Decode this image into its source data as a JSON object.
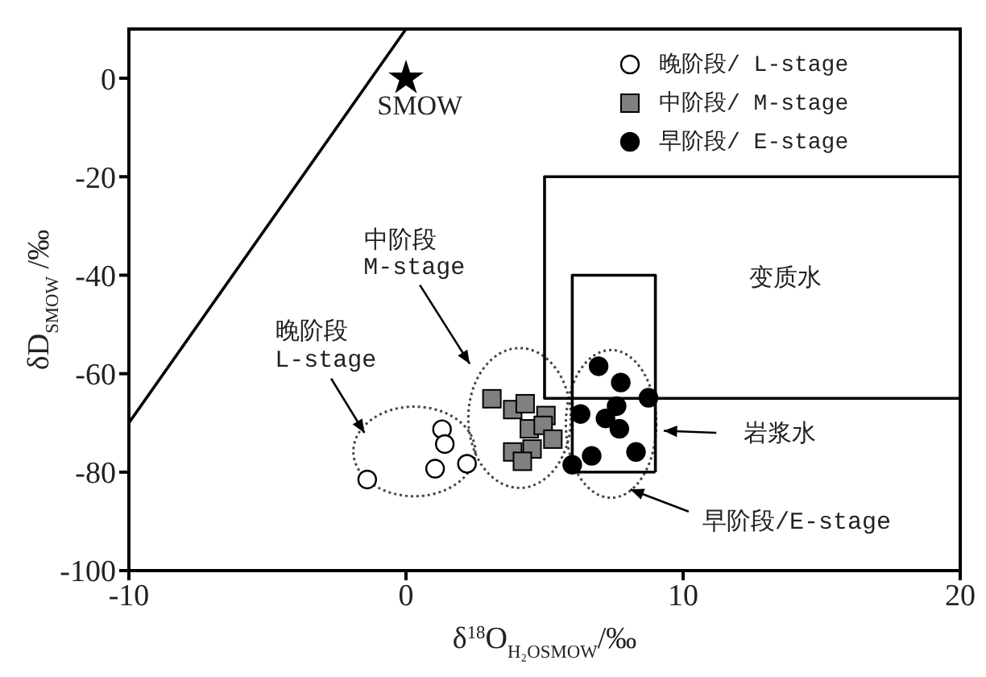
{
  "chart_data": {
    "type": "scatter",
    "xlabel": "δ$^{18}$O$_{H₂OSMOW}$/‰",
    "ylabel": "δD$_{SMOW}$ /‰",
    "xlim": [
      -10,
      20
    ],
    "xticks": [
      -10,
      0,
      10,
      20
    ],
    "ylim": [
      -100,
      10
    ],
    "yticks": [
      0,
      -20,
      -40,
      -60,
      -80,
      -100
    ],
    "grid": false,
    "legend": "top right",
    "series": [
      {
        "name": "晚阶段/ L-stage",
        "marker": "circle",
        "color": "#ffffff",
        "x": [
          -1.4,
          1.3,
          1.4,
          1.05,
          2.2
        ],
        "values": [
          -81.5,
          -71.3,
          -74.3,
          -79.3,
          -78.3
        ]
      },
      {
        "name": "中阶段/ M-stage",
        "marker": "square",
        "color": "#808080",
        "x": [
          3.1,
          3.85,
          4.3,
          4.45,
          5.05,
          4.95,
          5.3,
          4.55,
          3.85,
          4.2
        ],
        "values": [
          -65.1,
          -67.3,
          -66.1,
          -71.2,
          -68.5,
          -70.5,
          -73.3,
          -75.3,
          -75.9,
          -77.8
        ]
      },
      {
        "name": "早阶段/ E-stage",
        "marker": "circle",
        "color": "#000000",
        "x": [
          6.95,
          7.75,
          8.75,
          6.3,
          7.2,
          7.6,
          7.7,
          6.7,
          8.3,
          6.0
        ],
        "values": [
          -58.5,
          -61.8,
          -64.9,
          -68.2,
          -69.1,
          -66.6,
          -71.2,
          -76.7,
          -75.9,
          -78.5
        ]
      },
      {
        "marker": "star",
        "color": "#000000",
        "x": [
          0
        ],
        "values": [
          0
        ]
      },
      {
        "type": "line",
        "marker": "none",
        "color": "#000000",
        "x": [
          -10,
          0
        ],
        "values": [
          -70,
          10
        ]
      },
      {
        "type": "line",
        "marker": "none",
        "color": "#000000",
        "x": [
          20,
          5,
          5,
          20
        ],
        "values": [
          -20,
          -20,
          -65,
          -65
        ]
      },
      {
        "type": "line",
        "marker": "none",
        "color": "#000000",
        "x": [
          6,
          6,
          9,
          9
        ],
        "values": [
          -80,
          -40,
          -40,
          -80
        ]
      },
      {
        "type": "line",
        "marker": "none",
        "color": "#000000",
        "x": [
          6,
          9
        ],
        "values": [
          -80,
          -80
        ]
      }
    ],
    "annotations": [
      "SMOW",
      "中阶段",
      "M-stage",
      "晚阶段",
      "L-stage",
      "变质水",
      "岩浆水",
      "早阶段/E-stage"
    ]
  }
}
